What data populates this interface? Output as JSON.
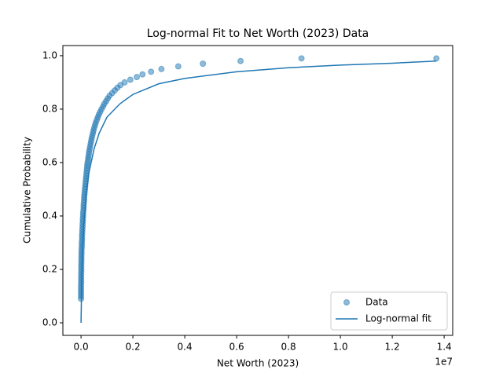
{
  "chart_data": {
    "type": "scatter",
    "title": "Log-normal Fit to Net Worth (2023) Data",
    "x_label": "Net Worth (2023)",
    "y_label": "Cumulative Probability",
    "x_offset_label": "1e7",
    "xlim": [
      -0.07,
      1.433
    ],
    "ylim": [
      -0.047,
      1.038
    ],
    "xticks": [
      {
        "value": 0,
        "label": "0.0"
      },
      0.2,
      0.4,
      0.6,
      0.8,
      {
        "value": 1,
        "label": "1.0"
      },
      1.2,
      1.4
    ],
    "yticks": [
      {
        "value": 0,
        "label": "0.0"
      },
      0.2,
      0.4,
      0.6,
      0.8,
      {
        "value": 1,
        "label": "1.0"
      }
    ],
    "legend": "lower right",
    "series": [
      {
        "name": "Data",
        "kind": "scatter",
        "color": "#1f77b4",
        "x": [
          0.0,
          0.0,
          0.0,
          0.0,
          0.0,
          0.0,
          0.0005,
          0.0005,
          0.0005,
          0.0005,
          0.001,
          0.001,
          0.001,
          0.001,
          0.0015,
          0.0015,
          0.0015,
          0.002,
          0.002,
          0.0025,
          0.003,
          0.003,
          0.004,
          0.004,
          0.004,
          0.005,
          0.005,
          0.006,
          0.006,
          0.007,
          0.007,
          0.008,
          0.008,
          0.009,
          0.01,
          0.01,
          0.011,
          0.012,
          0.012,
          0.013,
          0.014,
          0.015,
          0.016,
          0.017,
          0.018,
          0.019,
          0.02,
          0.021,
          0.022,
          0.023,
          0.024,
          0.025,
          0.027,
          0.028,
          0.03,
          0.031,
          0.033,
          0.035,
          0.037,
          0.039,
          0.041,
          0.043,
          0.046,
          0.048,
          0.051,
          0.054,
          0.057,
          0.061,
          0.065,
          0.069,
          0.074,
          0.079,
          0.085,
          0.09,
          0.097,
          0.103,
          0.11,
          0.12,
          0.13,
          0.14,
          0.152,
          0.168,
          0.19,
          0.215,
          0.237,
          0.27,
          0.31,
          0.375,
          0.47,
          0.615,
          0.85,
          1.37
        ],
        "values": [
          0.09,
          0.1,
          0.11,
          0.12,
          0.13,
          0.14,
          0.15,
          0.16,
          0.17,
          0.18,
          0.19,
          0.2,
          0.21,
          0.22,
          0.23,
          0.24,
          0.25,
          0.26,
          0.27,
          0.28,
          0.29,
          0.3,
          0.31,
          0.32,
          0.33,
          0.34,
          0.35,
          0.36,
          0.37,
          0.38,
          0.39,
          0.4,
          0.41,
          0.42,
          0.43,
          0.44,
          0.45,
          0.46,
          0.47,
          0.48,
          0.49,
          0.5,
          0.51,
          0.52,
          0.53,
          0.54,
          0.55,
          0.56,
          0.57,
          0.58,
          0.59,
          0.6,
          0.61,
          0.62,
          0.63,
          0.64,
          0.65,
          0.66,
          0.67,
          0.68,
          0.69,
          0.7,
          0.71,
          0.72,
          0.73,
          0.74,
          0.75,
          0.76,
          0.77,
          0.78,
          0.79,
          0.8,
          0.81,
          0.82,
          0.83,
          0.84,
          0.85,
          0.86,
          0.87,
          0.88,
          0.89,
          0.9,
          0.91,
          0.92,
          0.93,
          0.94,
          0.95,
          0.96,
          0.97,
          0.98,
          0.99,
          0.99
        ]
      },
      {
        "name": "Log-normal fit",
        "kind": "line",
        "color": "#1f77b4",
        "x": [
          0,
          0.002,
          0.005,
          0.01,
          0.02,
          0.03,
          0.05,
          0.07,
          0.1,
          0.15,
          0.2,
          0.3,
          0.4,
          0.6,
          0.8,
          1.0,
          1.2,
          1.37
        ],
        "values": [
          0,
          0.12,
          0.25,
          0.36,
          0.48,
          0.56,
          0.65,
          0.71,
          0.77,
          0.82,
          0.855,
          0.895,
          0.915,
          0.94,
          0.955,
          0.965,
          0.972,
          0.98
        ]
      }
    ]
  }
}
